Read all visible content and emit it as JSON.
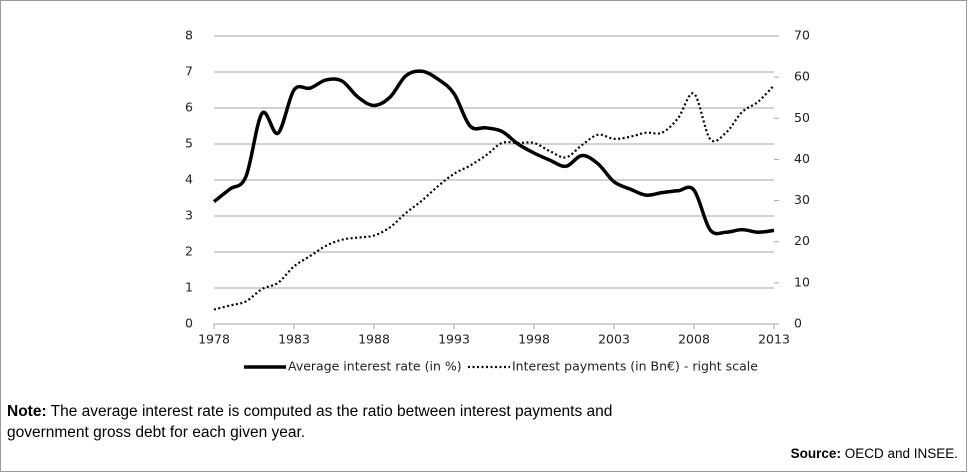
{
  "chart_data": {
    "type": "line",
    "x": [
      1978,
      1979,
      1980,
      1981,
      1982,
      1983,
      1984,
      1985,
      1986,
      1987,
      1988,
      1989,
      1990,
      1991,
      1992,
      1993,
      1994,
      1995,
      1996,
      1997,
      1998,
      1999,
      2000,
      2001,
      2002,
      2003,
      2004,
      2005,
      2006,
      2007,
      2008,
      2009,
      2010,
      2011,
      2012,
      2013
    ],
    "xlim": [
      1978,
      2013
    ],
    "xticks": [
      1978,
      1983,
      1988,
      1993,
      1998,
      2003,
      2008,
      2013
    ],
    "ylim": [
      0,
      8
    ],
    "yticks": [
      0,
      1,
      2,
      3,
      4,
      5,
      6,
      7,
      8
    ],
    "y2lim": [
      0,
      70
    ],
    "y2ticks": [
      0,
      10,
      20,
      30,
      40,
      50,
      60,
      70
    ],
    "grid": true,
    "legend": "bottom",
    "series": [
      {
        "name": "Average interest rate (in %)",
        "color": "#000000",
        "style": "solid",
        "values": [
          3.4,
          3.75,
          4.1,
          5.85,
          5.3,
          6.5,
          6.55,
          6.78,
          6.75,
          6.3,
          6.07,
          6.3,
          6.9,
          7.02,
          6.8,
          6.4,
          5.5,
          5.45,
          5.35,
          5.0,
          4.75,
          4.55,
          4.38,
          4.68,
          4.45,
          3.95,
          3.75,
          3.58,
          3.65,
          3.7,
          3.72,
          2.62,
          2.55,
          2.62,
          2.55,
          2.6
        ]
      },
      {
        "name": "Interest payments (in Bn€) - right scale",
        "color": "#000000",
        "style": "dotted",
        "axis": "y2",
        "values": [
          3.5,
          4.5,
          5.5,
          8.5,
          10,
          14,
          16.5,
          19,
          20.5,
          21,
          21.5,
          23.5,
          27,
          30,
          33.5,
          36.5,
          38.5,
          41,
          44,
          44,
          44,
          42,
          40.5,
          43.5,
          46,
          45,
          45.5,
          46.5,
          46.5,
          50,
          56,
          45,
          46.5,
          51.5,
          54,
          58
        ]
      }
    ]
  },
  "note": {
    "label": "Note:",
    "text": "The average interest rate is computed as the ratio between interest payments and government gross debt for each given year."
  },
  "source": {
    "label": "Source:",
    "text": "OECD and INSEE."
  }
}
